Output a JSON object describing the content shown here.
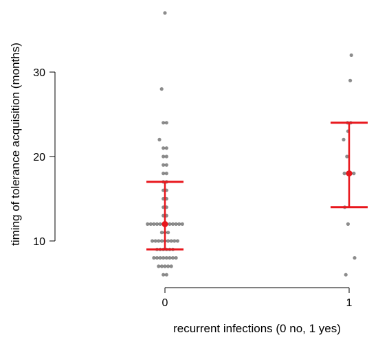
{
  "chart_data": {
    "type": "scatter",
    "xlabel": "recurrent infections (0 no, 1 yes)",
    "ylabel": "timing of tolerance acquisition (months)",
    "x_ticks": [
      0,
      1
    ],
    "y_ticks": [
      10,
      20,
      30
    ],
    "y_range": [
      6,
      37
    ],
    "grid": false,
    "colors": {
      "points": "#000000",
      "summary": "#e8161c"
    },
    "groups": [
      {
        "x": 0,
        "points": [
          37,
          28,
          24,
          24,
          22,
          21,
          21,
          20,
          20,
          19,
          19,
          18,
          18,
          17,
          17,
          16,
          16,
          15,
          15,
          14,
          14,
          13,
          13,
          12,
          12,
          12,
          12,
          12,
          12,
          12,
          12,
          12,
          12,
          12,
          12,
          11,
          11,
          11,
          10,
          10,
          10,
          10,
          10,
          10,
          10,
          10,
          10,
          9,
          9,
          9,
          9,
          9,
          9,
          8,
          8,
          8,
          8,
          8,
          8,
          8,
          8,
          7,
          7,
          7,
          7,
          7,
          6,
          6
        ],
        "median": 12,
        "q1": 9,
        "q3": 17
      },
      {
        "x": 1,
        "points": [
          32,
          29,
          24,
          24,
          23,
          22,
          20,
          18,
          18,
          18,
          18,
          14,
          12,
          8,
          6
        ],
        "median": 18,
        "q1": 14,
        "q3": 24
      }
    ]
  }
}
